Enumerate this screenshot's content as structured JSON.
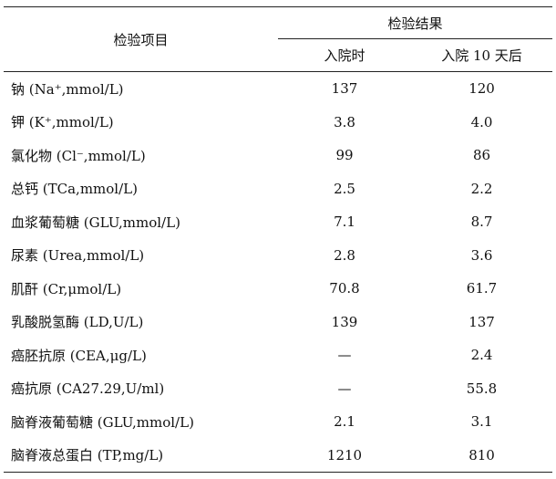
{
  "table": {
    "header": {
      "item": "检验项目",
      "result": "检验结果",
      "columns": [
        "入院时",
        "入院 10 天后"
      ]
    },
    "rows": [
      [
        "钠 (Na⁺,mmol/L)",
        "137",
        "120"
      ],
      [
        "钾 (K⁺,mmol/L)",
        "3.8",
        "4.0"
      ],
      [
        "氯化物 (Cl⁻,mmol/L)",
        "99",
        "86"
      ],
      [
        "总钙 (TCa,mmol/L)",
        "2.5",
        "2.2"
      ],
      [
        "血浆葡萄糖 (GLU,mmol/L)",
        "7.1",
        "8.7"
      ],
      [
        "尿素 (Urea,mmol/L)",
        "2.8",
        "3.6"
      ],
      [
        "肌酐 (Cr,μmol/L)",
        "70.8",
        "61.7"
      ],
      [
        "乳酸脱氢酶 (LD,U/L)",
        "139",
        "137"
      ],
      [
        "癌胚抗原 (CEA,μg/L)",
        "—",
        "2.4"
      ],
      [
        "癌抗原 (CA27.29,U/ml)",
        "—",
        "55.8"
      ],
      [
        "脑脊液葡萄糖 (GLU,mmol/L)",
        "2.1",
        "3.1"
      ],
      [
        "脑脊液总蛋白 (TP,mg/L)",
        "1210",
        "810"
      ]
    ]
  }
}
